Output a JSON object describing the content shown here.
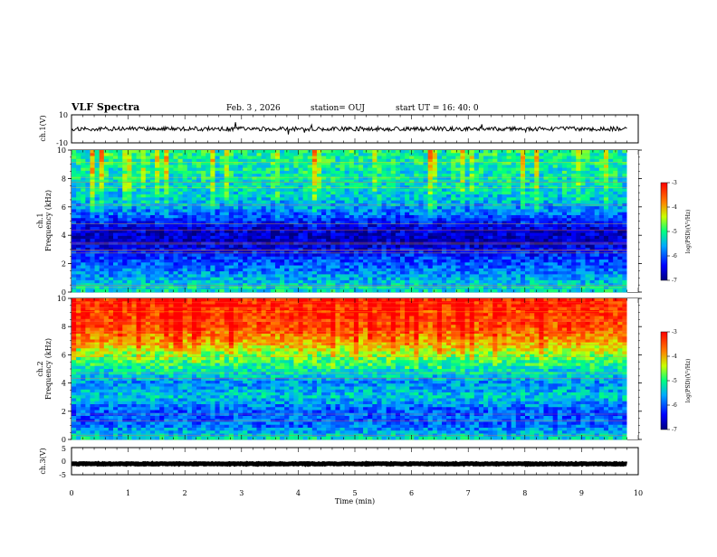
{
  "header": {
    "title": "VLF Spectra",
    "date": "Feb. 3 , 2026",
    "station": "station= OUJ",
    "start": "start UT = 16: 40: 0"
  },
  "chart_data": [
    {
      "type": "line",
      "name": "ch1-waveform",
      "ylabel": "ch.1(V)",
      "ylim": [
        -10,
        10
      ],
      "yticks": [
        "10",
        "-10"
      ],
      "xlim": [
        0,
        10
      ],
      "baseline": 0,
      "noise_amplitude": 1.5
    },
    {
      "type": "heatmap",
      "name": "ch1-spectrogram",
      "ylabel_top": "ch.1",
      "ylabel": "Frequency (kHz)",
      "ylim": [
        0,
        10
      ],
      "yticks": [
        "0",
        "2",
        "4",
        "6",
        "8",
        "10"
      ],
      "xlim": [
        0,
        9.8
      ],
      "colorbar": {
        "label": "log(PSD)(V²/Hz)",
        "range": [
          -7,
          -3
        ],
        "ticks": [
          "-3",
          "-4",
          "-5",
          "-6",
          "-7"
        ]
      },
      "profile": [
        {
          "f": 0,
          "v": -5.2
        },
        {
          "f": 0.5,
          "v": -5.4
        },
        {
          "f": 1.5,
          "v": -5.8
        },
        {
          "f": 2.5,
          "v": -6.2
        },
        {
          "f": 3.5,
          "v": -6.7
        },
        {
          "f": 4.5,
          "v": -6.6
        },
        {
          "f": 5.5,
          "v": -5.9
        },
        {
          "f": 6.5,
          "v": -5.4
        },
        {
          "f": 8,
          "v": -5.2
        },
        {
          "f": 10,
          "v": -5.0
        }
      ]
    },
    {
      "type": "heatmap",
      "name": "ch2-spectrogram",
      "ylabel_top": "ch.2",
      "ylabel": "Frequency (kHz)",
      "ylim": [
        0,
        10
      ],
      "yticks": [
        "0",
        "2",
        "4",
        "6",
        "8",
        "10"
      ],
      "xlim": [
        0,
        9.8
      ],
      "colorbar": {
        "label": "log(PSD)(V²/Hz)",
        "range": [
          -7,
          -3
        ],
        "ticks": [
          "-3",
          "-4",
          "-5",
          "-6",
          "-7"
        ]
      },
      "profile": [
        {
          "f": 0,
          "v": -5.2
        },
        {
          "f": 1,
          "v": -5.9
        },
        {
          "f": 2,
          "v": -6.0
        },
        {
          "f": 3,
          "v": -5.4
        },
        {
          "f": 4,
          "v": -5.7
        },
        {
          "f": 5,
          "v": -5.2
        },
        {
          "f": 6,
          "v": -4.6
        },
        {
          "f": 7,
          "v": -3.9
        },
        {
          "f": 8,
          "v": -3.5
        },
        {
          "f": 10,
          "v": -3.2
        }
      ]
    },
    {
      "type": "line",
      "name": "ch3-waveform",
      "ylabel": "ch.3(V)",
      "ylim": [
        -5,
        5
      ],
      "yticks": [
        "5",
        "0",
        "-5"
      ],
      "xlim": [
        0,
        10
      ],
      "baseline": -1,
      "noise_amplitude": 0.15
    }
  ],
  "xaxis": {
    "label": "Time (min)",
    "range": [
      0,
      10
    ],
    "ticks": [
      "0",
      "1",
      "2",
      "3",
      "4",
      "5",
      "6",
      "7",
      "8",
      "9",
      "10"
    ]
  }
}
